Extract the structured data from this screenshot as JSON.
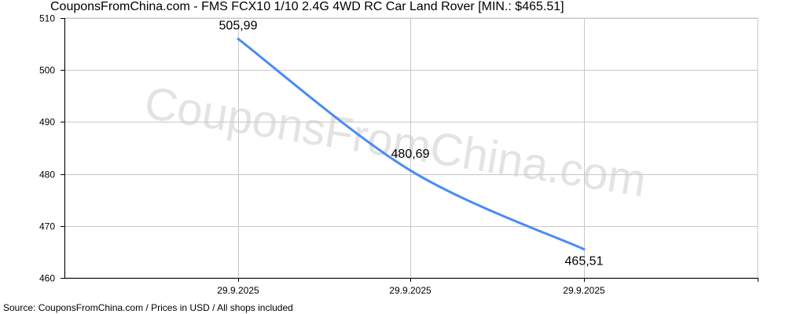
{
  "chart_data": {
    "type": "line",
    "title": "CouponsFromChina.com - FMS FCX10 1/10 2.4G 4WD RC Car Land Rover [MIN.: $465.51]",
    "source": "Source: CouponsFromChina.com / Prices in USD / All shops included",
    "watermark": "CouponsFromChina.com",
    "x": [
      "29.9.2025",
      "29.9.2025",
      "29.9.2025"
    ],
    "series": [
      {
        "values": [
          505.99,
          480.69,
          465.51
        ],
        "value_labels": [
          "505,99",
          "480,69",
          "465,51"
        ],
        "color": "#4a8cf0"
      }
    ],
    "y_ticks": [
      "460",
      "470",
      "480",
      "490",
      "500",
      "510"
    ],
    "ylim": [
      460,
      510
    ],
    "grid": true,
    "colors": {
      "grid": "#c8c8c8",
      "axis": "#000000",
      "watermark": "#e3e3e3",
      "line": "#4a8cf0"
    }
  }
}
